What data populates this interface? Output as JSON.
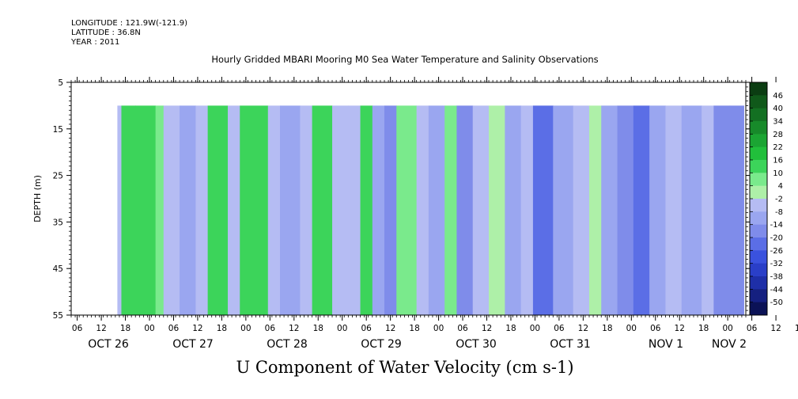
{
  "header": {
    "longitude": "LONGITUDE : 121.9W(-121.9)",
    "latitude": "LATITUDE : 36.8N",
    "year": "YEAR : 2011"
  },
  "chart_data": {
    "type": "heatmap",
    "title": "Hourly Gridded MBARI Mooring M0 Sea Water Temperature and Salinity Observations",
    "xlabel": "U Component of Water Velocity (cm s-1)",
    "ylabel": "DEPTH (m)",
    "ylim": [
      55,
      5
    ],
    "y_ticks": [
      5,
      15,
      25,
      35,
      45,
      55
    ],
    "data_depth_range": [
      10,
      55
    ],
    "x_range_hours": [
      0,
      168
    ],
    "x_hour_labels": [
      "06",
      "12",
      "18",
      "00",
      "06",
      "12",
      "18",
      "00",
      "06",
      "12",
      "18",
      "00",
      "06",
      "12",
      "18",
      "00",
      "06",
      "12",
      "18",
      "00",
      "06",
      "12",
      "18",
      "00",
      "06",
      "12",
      "18",
      "00",
      "06",
      "12",
      "18",
      "00"
    ],
    "x_date_labels": [
      "OCT 26",
      "OCT 27",
      "OCT 28",
      "OCT 29",
      "OCT 30",
      "OCT 31",
      "NOV  1",
      "NOV  2"
    ],
    "colorbar": {
      "levels": [
        "46",
        "40",
        "34",
        "28",
        "22",
        "16",
        "10",
        "4",
        "-2",
        "-8",
        "-14",
        "-20",
        "-26",
        "-32",
        "-38",
        "-44",
        "-50"
      ],
      "colors": [
        "#0b3d12",
        "#10591a",
        "#137022",
        "#178a2a",
        "#1ba533",
        "#21bf3b",
        "#3cd45a",
        "#7aea8c",
        "#aef0a8",
        "#b5bcf3",
        "#9aa6f0",
        "#7f8cea",
        "#5b6ee6",
        "#3a52de",
        "#2a3fc8",
        "#1e2fa8",
        "#152080",
        "#0b1256"
      ]
    },
    "u_velocity_bands": [
      {
        "hour_start": 11.5,
        "hour_end": 12.5,
        "value": -4
      },
      {
        "hour_start": 12.5,
        "hour_end": 16,
        "value": 10
      },
      {
        "hour_start": 16,
        "hour_end": 21,
        "value": 14
      },
      {
        "hour_start": 21,
        "hour_end": 23,
        "value": 4
      },
      {
        "hour_start": 23,
        "hour_end": 27,
        "value": -6
      },
      {
        "hour_start": 27,
        "hour_end": 31,
        "value": -12
      },
      {
        "hour_start": 31,
        "hour_end": 34,
        "value": -6
      },
      {
        "hour_start": 34,
        "hour_end": 39,
        "value": 10
      },
      {
        "hour_start": 39,
        "hour_end": 42,
        "value": -4
      },
      {
        "hour_start": 42,
        "hour_end": 49,
        "value": 12
      },
      {
        "hour_start": 49,
        "hour_end": 52,
        "value": -4
      },
      {
        "hour_start": 52,
        "hour_end": 57,
        "value": -14
      },
      {
        "hour_start": 57,
        "hour_end": 60,
        "value": -6
      },
      {
        "hour_start": 60,
        "hour_end": 65,
        "value": 14
      },
      {
        "hour_start": 65,
        "hour_end": 69,
        "value": -6
      },
      {
        "hour_start": 69,
        "hour_end": 72,
        "value": -8
      },
      {
        "hour_start": 72,
        "hour_end": 75,
        "value": 10
      },
      {
        "hour_start": 75,
        "hour_end": 78,
        "value": -10
      },
      {
        "hour_start": 78,
        "hour_end": 81,
        "value": -16
      },
      {
        "hour_start": 81,
        "hour_end": 86,
        "value": 8
      },
      {
        "hour_start": 86,
        "hour_end": 89,
        "value": -6
      },
      {
        "hour_start": 89,
        "hour_end": 93,
        "value": -10
      },
      {
        "hour_start": 93,
        "hour_end": 96,
        "value": 4
      },
      {
        "hour_start": 96,
        "hour_end": 100,
        "value": -18
      },
      {
        "hour_start": 100,
        "hour_end": 104,
        "value": -6
      },
      {
        "hour_start": 104,
        "hour_end": 108,
        "value": -2
      },
      {
        "hour_start": 108,
        "hour_end": 112,
        "value": -12
      },
      {
        "hour_start": 112,
        "hour_end": 115,
        "value": -8
      },
      {
        "hour_start": 115,
        "hour_end": 120,
        "value": -22
      },
      {
        "hour_start": 120,
        "hour_end": 125,
        "value": -14
      },
      {
        "hour_start": 125,
        "hour_end": 129,
        "value": -8
      },
      {
        "hour_start": 129,
        "hour_end": 132,
        "value": -2
      },
      {
        "hour_start": 132,
        "hour_end": 136,
        "value": -12
      },
      {
        "hour_start": 136,
        "hour_end": 140,
        "value": -20
      },
      {
        "hour_start": 140,
        "hour_end": 144,
        "value": -24
      },
      {
        "hour_start": 144,
        "hour_end": 148,
        "value": -10
      },
      {
        "hour_start": 148,
        "hour_end": 152,
        "value": -6
      },
      {
        "hour_start": 152,
        "hour_end": 157,
        "value": -12
      },
      {
        "hour_start": 157,
        "hour_end": 160,
        "value": -4
      },
      {
        "hour_start": 160,
        "hour_end": 164,
        "value": -16
      },
      {
        "hour_start": 164,
        "hour_end": 167.5,
        "value": -20
      }
    ],
    "grid": false
  }
}
